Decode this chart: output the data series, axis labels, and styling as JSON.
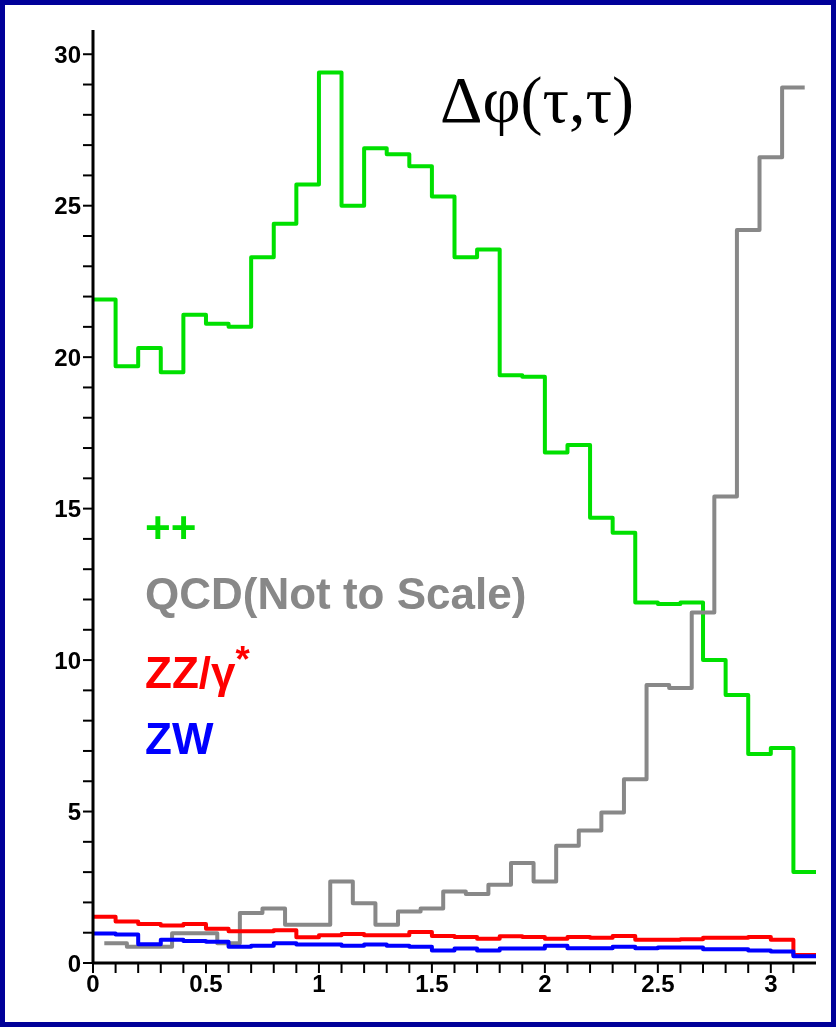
{
  "chart_data": {
    "type": "histogram",
    "title": "Δφ(τ,τ)",
    "bins": [
      0,
      0.1,
      0.2,
      0.3,
      0.4,
      0.5,
      0.6,
      0.7,
      0.8,
      0.9,
      1,
      1.1,
      1.2,
      1.3,
      1.4,
      1.5,
      1.6,
      1.7,
      1.8,
      1.9,
      2,
      2.1,
      2.2,
      2.3,
      2.4,
      2.5,
      2.6,
      2.7,
      2.8,
      2.9,
      3,
      3.1,
      3.2
    ],
    "series": [
      {
        "name": "++",
        "color": "#00e000",
        "values": [
          21.9,
          19.7,
          20.3,
          19.5,
          21.4,
          21.1,
          21.0,
          23.3,
          24.4,
          25.7,
          29.4,
          25.0,
          26.9,
          26.7,
          26.3,
          25.3,
          23.3,
          23.55,
          19.4,
          19.35,
          16.85,
          17.1,
          14.7,
          14.2,
          11.9,
          11.85,
          11.9,
          10.0,
          8.85,
          6.9,
          7.1,
          3.0
        ]
      },
      {
        "name": "QCD(Not to Scale)",
        "color": "#888888",
        "bins": [
          0.05,
          0.15,
          0.25,
          0.35,
          0.45,
          0.55,
          0.65,
          0.75,
          0.85,
          0.95,
          1.05,
          1.15,
          1.25,
          1.35,
          1.45,
          1.55,
          1.65,
          1.75,
          1.85,
          1.95,
          2.05,
          2.15,
          2.25,
          2.35,
          2.45,
          2.55,
          2.65,
          2.75,
          2.85,
          2.95,
          3.05,
          3.15
        ],
        "values": [
          0.65,
          0.54,
          0.54,
          0.98,
          0.98,
          0.65,
          1.65,
          1.8,
          1.26,
          1.26,
          2.69,
          1.97,
          1.26,
          1.7,
          1.8,
          2.36,
          2.28,
          2.58,
          3.3,
          2.69,
          3.87,
          4.37,
          4.97,
          6.07,
          9.18,
          9.08,
          11.57,
          15.4,
          24.2,
          26.6,
          28.9
        ]
      },
      {
        "name": "ZZ/γ$^{*}$",
        "color": "#ff0000",
        "values": [
          1.53,
          1.37,
          1.29,
          1.24,
          1.29,
          1.13,
          1.05,
          1.05,
          1.08,
          0.85,
          0.92,
          0.96,
          0.92,
          0.92,
          1.02,
          0.89,
          0.86,
          0.8,
          0.88,
          0.86,
          0.8,
          0.86,
          0.83,
          0.89,
          0.77,
          0.77,
          0.78,
          0.83,
          0.83,
          0.86,
          0.77,
          0.26
        ]
      },
      {
        "name": "ZW",
        "color": "#0000ff",
        "values": [
          0.97,
          0.94,
          0.62,
          0.77,
          0.73,
          0.7,
          0.54,
          0.57,
          0.65,
          0.61,
          0.61,
          0.57,
          0.61,
          0.57,
          0.54,
          0.41,
          0.48,
          0.41,
          0.48,
          0.48,
          0.57,
          0.49,
          0.49,
          0.54,
          0.49,
          0.51,
          0.51,
          0.45,
          0.45,
          0.41,
          0.38,
          0.22
        ]
      }
    ],
    "xlim": [
      0,
      3.2
    ],
    "xticks": [
      0,
      {
        "value": 0.1,
        "label": null
      },
      {
        "value": 0.2,
        "label": null
      },
      {
        "value": 0.3,
        "label": null
      },
      {
        "value": 0.4,
        "label": null
      },
      0.5,
      {
        "value": 0.6,
        "label": null
      },
      {
        "value": 0.7,
        "label": null
      },
      {
        "value": 0.8,
        "label": null
      },
      {
        "value": 0.9,
        "label": null
      },
      1,
      {
        "value": 1.1,
        "label": null
      },
      {
        "value": 1.2,
        "label": null
      },
      {
        "value": 1.3,
        "label": null
      },
      {
        "value": 1.4,
        "label": null
      },
      1.5,
      {
        "value": 1.6,
        "label": null
      },
      {
        "value": 1.7,
        "label": null
      },
      {
        "value": 1.8,
        "label": null
      },
      {
        "value": 1.9,
        "label": null
      },
      2,
      {
        "value": 2.1,
        "label": null
      },
      {
        "value": 2.2,
        "label": null
      },
      {
        "value": 2.3,
        "label": null
      },
      {
        "value": 2.4,
        "label": null
      },
      2.5,
      {
        "value": 2.6,
        "label": null
      },
      {
        "value": 2.7,
        "label": null
      },
      {
        "value": 2.8,
        "label": null
      },
      {
        "value": 2.9,
        "label": null
      },
      3,
      {
        "value": 3.1,
        "label": null
      }
    ],
    "ylim": [
      0,
      30.8
    ],
    "yticks": [
      0,
      {
        "value": 1,
        "label": null
      },
      {
        "value": 2,
        "label": null
      },
      {
        "value": 3,
        "label": null
      },
      {
        "value": 4,
        "label": null
      },
      5,
      {
        "value": 6,
        "label": null
      },
      {
        "value": 7,
        "label": null
      },
      {
        "value": 8,
        "label": null
      },
      {
        "value": 9,
        "label": null
      },
      10,
      {
        "value": 11,
        "label": null
      },
      {
        "value": 12,
        "label": null
      },
      {
        "value": 13,
        "label": null
      },
      {
        "value": 14,
        "label": null
      },
      15,
      {
        "value": 16,
        "label": null
      },
      {
        "value": 17,
        "label": null
      },
      {
        "value": 18,
        "label": null
      },
      {
        "value": 19,
        "label": null
      },
      20,
      {
        "value": 21,
        "label": null
      },
      {
        "value": 22,
        "label": null
      },
      {
        "value": 23,
        "label": null
      },
      {
        "value": 24,
        "label": null
      },
      25,
      {
        "value": 26,
        "label": null
      },
      {
        "value": 27,
        "label": null
      },
      {
        "value": 28,
        "label": null
      },
      {
        "value": 29,
        "label": null
      },
      30
    ],
    "legend": "left",
    "grid": false,
    "marker": "none",
    "line_style": "solid"
  }
}
